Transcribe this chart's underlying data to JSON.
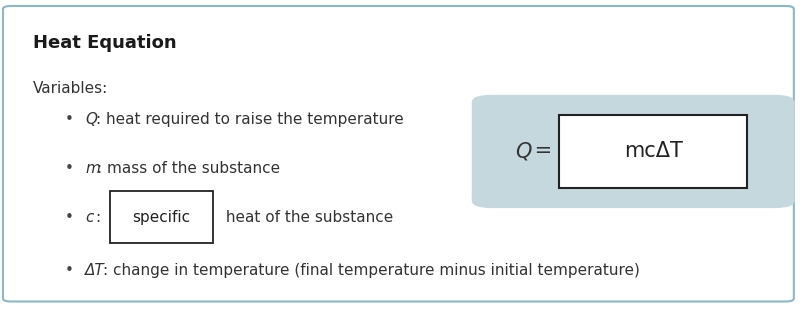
{
  "title": "Heat Equation",
  "title_fontsize": 13,
  "variables_label": "Variables:",
  "variables_fontsize": 11,
  "outer_border_color": "#8ab8c8",
  "outer_bg": "#ffffff",
  "text_color": "#333333",
  "font_size": 11,
  "formula_box_bg": "#c5d8de",
  "formula_text": "mcΔT",
  "formula_Q_italic": "Q",
  "formula_Q_rest": " =",
  "bullet_symbol": "•",
  "items": [
    {
      "italic": "Q",
      "plain": ": heat required to raise the temperature",
      "has_box": false,
      "box_word": ""
    },
    {
      "italic": "m",
      "plain": ": mass of the substance",
      "has_box": false,
      "box_word": ""
    },
    {
      "italic": "c",
      "plain": ":",
      "has_box": true,
      "box_word": "specific",
      "after_box": " heat of the substance"
    },
    {
      "italic": "ΔT",
      "plain": ": change in temperature (final temperature minus initial temperature)",
      "has_box": false,
      "box_word": ""
    }
  ]
}
